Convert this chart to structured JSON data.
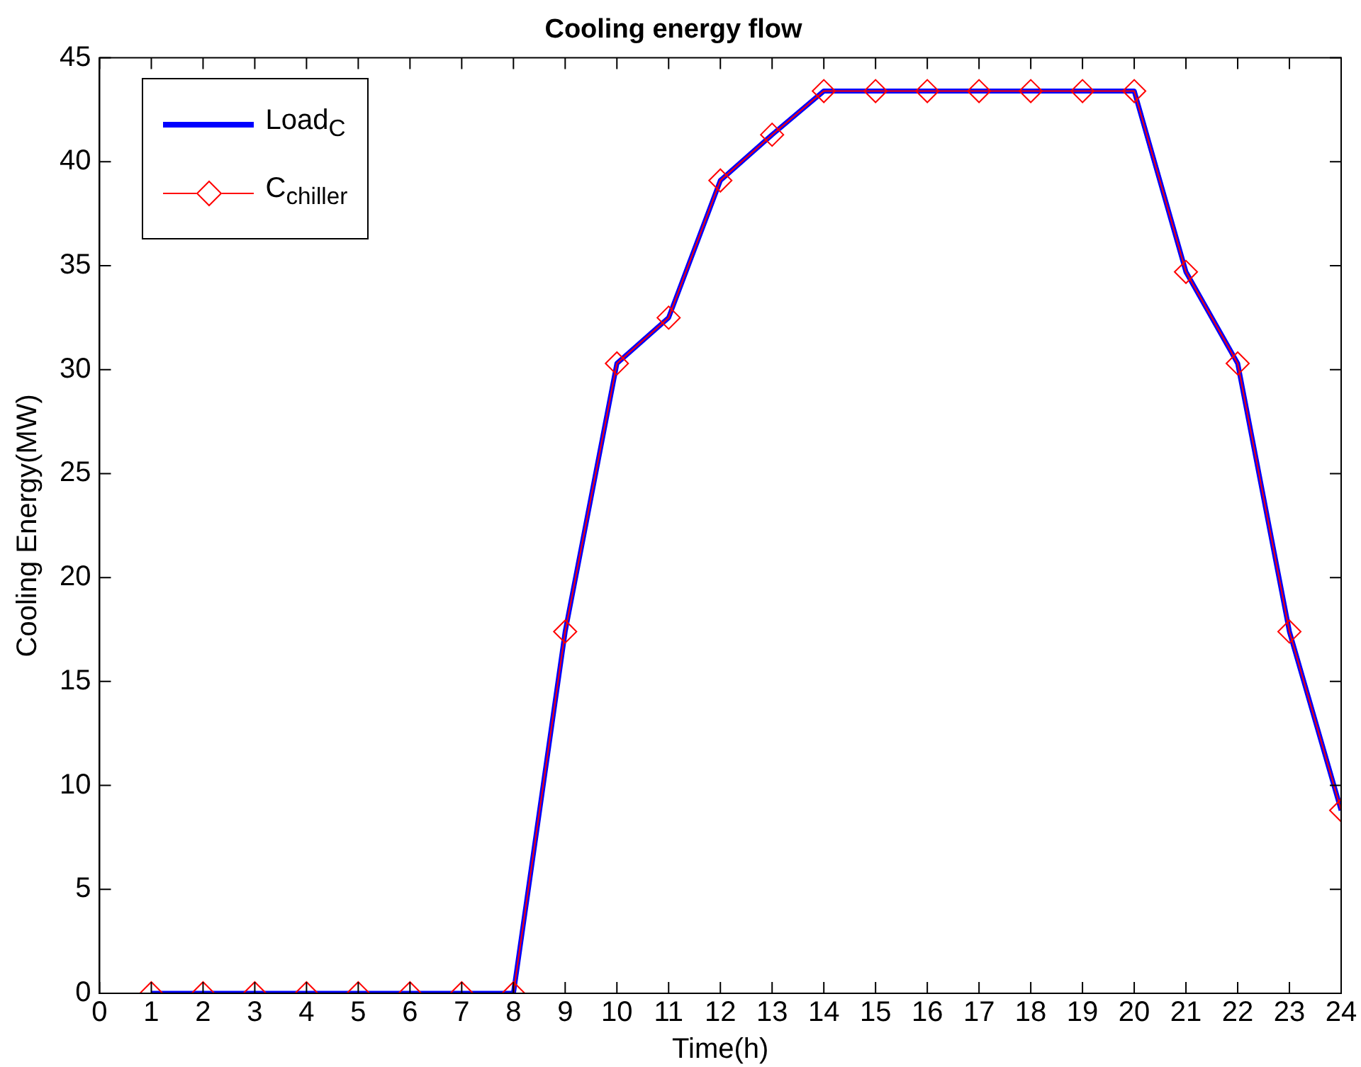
{
  "chart_data": {
    "type": "line",
    "title": "Cooling energy flow",
    "xlabel": "Time(h)",
    "ylabel": "Cooling Energy(MW)",
    "x": [
      1,
      2,
      3,
      4,
      5,
      6,
      7,
      8,
      9,
      10,
      11,
      12,
      13,
      14,
      15,
      16,
      17,
      18,
      19,
      20,
      21,
      22,
      23,
      24
    ],
    "series": [
      {
        "name": "Load$_{C}$",
        "color": "#0000ff",
        "marker": "none",
        "values": [
          0,
          0,
          0,
          0,
          0,
          0,
          0,
          0,
          17.4,
          30.3,
          32.5,
          39.1,
          41.3,
          43.4,
          43.4,
          43.4,
          43.4,
          43.4,
          43.4,
          43.4,
          34.7,
          30.3,
          17.4,
          8.8
        ]
      },
      {
        "name": "C$_{chiller}$",
        "color": "#ff0000",
        "marker": "diamond",
        "values": [
          0,
          0,
          0,
          0,
          0,
          0,
          0,
          0,
          17.4,
          30.3,
          32.5,
          39.1,
          41.3,
          43.4,
          43.4,
          43.4,
          43.4,
          43.4,
          43.4,
          43.4,
          34.7,
          30.3,
          17.4,
          8.8
        ]
      }
    ],
    "xlim": [
      0,
      24
    ],
    "xticks": [
      0,
      1,
      2,
      3,
      4,
      5,
      6,
      7,
      8,
      9,
      10,
      11,
      12,
      13,
      14,
      15,
      16,
      17,
      18,
      19,
      20,
      21,
      22,
      23,
      24
    ],
    "ylim": [
      0,
      45
    ],
    "yticks": [
      0,
      5,
      10,
      15,
      20,
      25,
      30,
      35,
      40,
      45
    ],
    "grid": false,
    "legend": "top left",
    "line_style": "solid"
  }
}
